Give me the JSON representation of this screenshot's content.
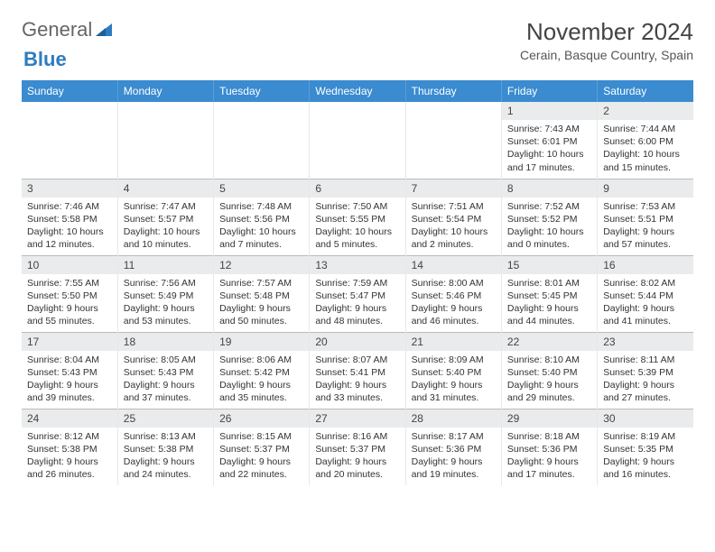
{
  "logo": {
    "general": "General",
    "blue": "Blue"
  },
  "title": "November 2024",
  "location": "Cerain, Basque Country, Spain",
  "colors": {
    "header_bg": "#3a8bd0",
    "header_text": "#ffffff",
    "daynum_bg": "#e9ebec",
    "text": "#333333",
    "logo_blue": "#2e7cc0",
    "border": "#bbbbbb"
  },
  "weekdays": [
    "Sunday",
    "Monday",
    "Tuesday",
    "Wednesday",
    "Thursday",
    "Friday",
    "Saturday"
  ],
  "weeks": [
    [
      null,
      null,
      null,
      null,
      null,
      {
        "n": "1",
        "sr": "Sunrise: 7:43 AM",
        "ss": "Sunset: 6:01 PM",
        "d1": "Daylight: 10 hours",
        "d2": "and 17 minutes."
      },
      {
        "n": "2",
        "sr": "Sunrise: 7:44 AM",
        "ss": "Sunset: 6:00 PM",
        "d1": "Daylight: 10 hours",
        "d2": "and 15 minutes."
      }
    ],
    [
      {
        "n": "3",
        "sr": "Sunrise: 7:46 AM",
        "ss": "Sunset: 5:58 PM",
        "d1": "Daylight: 10 hours",
        "d2": "and 12 minutes."
      },
      {
        "n": "4",
        "sr": "Sunrise: 7:47 AM",
        "ss": "Sunset: 5:57 PM",
        "d1": "Daylight: 10 hours",
        "d2": "and 10 minutes."
      },
      {
        "n": "5",
        "sr": "Sunrise: 7:48 AM",
        "ss": "Sunset: 5:56 PM",
        "d1": "Daylight: 10 hours",
        "d2": "and 7 minutes."
      },
      {
        "n": "6",
        "sr": "Sunrise: 7:50 AM",
        "ss": "Sunset: 5:55 PM",
        "d1": "Daylight: 10 hours",
        "d2": "and 5 minutes."
      },
      {
        "n": "7",
        "sr": "Sunrise: 7:51 AM",
        "ss": "Sunset: 5:54 PM",
        "d1": "Daylight: 10 hours",
        "d2": "and 2 minutes."
      },
      {
        "n": "8",
        "sr": "Sunrise: 7:52 AM",
        "ss": "Sunset: 5:52 PM",
        "d1": "Daylight: 10 hours",
        "d2": "and 0 minutes."
      },
      {
        "n": "9",
        "sr": "Sunrise: 7:53 AM",
        "ss": "Sunset: 5:51 PM",
        "d1": "Daylight: 9 hours",
        "d2": "and 57 minutes."
      }
    ],
    [
      {
        "n": "10",
        "sr": "Sunrise: 7:55 AM",
        "ss": "Sunset: 5:50 PM",
        "d1": "Daylight: 9 hours",
        "d2": "and 55 minutes."
      },
      {
        "n": "11",
        "sr": "Sunrise: 7:56 AM",
        "ss": "Sunset: 5:49 PM",
        "d1": "Daylight: 9 hours",
        "d2": "and 53 minutes."
      },
      {
        "n": "12",
        "sr": "Sunrise: 7:57 AM",
        "ss": "Sunset: 5:48 PM",
        "d1": "Daylight: 9 hours",
        "d2": "and 50 minutes."
      },
      {
        "n": "13",
        "sr": "Sunrise: 7:59 AM",
        "ss": "Sunset: 5:47 PM",
        "d1": "Daylight: 9 hours",
        "d2": "and 48 minutes."
      },
      {
        "n": "14",
        "sr": "Sunrise: 8:00 AM",
        "ss": "Sunset: 5:46 PM",
        "d1": "Daylight: 9 hours",
        "d2": "and 46 minutes."
      },
      {
        "n": "15",
        "sr": "Sunrise: 8:01 AM",
        "ss": "Sunset: 5:45 PM",
        "d1": "Daylight: 9 hours",
        "d2": "and 44 minutes."
      },
      {
        "n": "16",
        "sr": "Sunrise: 8:02 AM",
        "ss": "Sunset: 5:44 PM",
        "d1": "Daylight: 9 hours",
        "d2": "and 41 minutes."
      }
    ],
    [
      {
        "n": "17",
        "sr": "Sunrise: 8:04 AM",
        "ss": "Sunset: 5:43 PM",
        "d1": "Daylight: 9 hours",
        "d2": "and 39 minutes."
      },
      {
        "n": "18",
        "sr": "Sunrise: 8:05 AM",
        "ss": "Sunset: 5:43 PM",
        "d1": "Daylight: 9 hours",
        "d2": "and 37 minutes."
      },
      {
        "n": "19",
        "sr": "Sunrise: 8:06 AM",
        "ss": "Sunset: 5:42 PM",
        "d1": "Daylight: 9 hours",
        "d2": "and 35 minutes."
      },
      {
        "n": "20",
        "sr": "Sunrise: 8:07 AM",
        "ss": "Sunset: 5:41 PM",
        "d1": "Daylight: 9 hours",
        "d2": "and 33 minutes."
      },
      {
        "n": "21",
        "sr": "Sunrise: 8:09 AM",
        "ss": "Sunset: 5:40 PM",
        "d1": "Daylight: 9 hours",
        "d2": "and 31 minutes."
      },
      {
        "n": "22",
        "sr": "Sunrise: 8:10 AM",
        "ss": "Sunset: 5:40 PM",
        "d1": "Daylight: 9 hours",
        "d2": "and 29 minutes."
      },
      {
        "n": "23",
        "sr": "Sunrise: 8:11 AM",
        "ss": "Sunset: 5:39 PM",
        "d1": "Daylight: 9 hours",
        "d2": "and 27 minutes."
      }
    ],
    [
      {
        "n": "24",
        "sr": "Sunrise: 8:12 AM",
        "ss": "Sunset: 5:38 PM",
        "d1": "Daylight: 9 hours",
        "d2": "and 26 minutes."
      },
      {
        "n": "25",
        "sr": "Sunrise: 8:13 AM",
        "ss": "Sunset: 5:38 PM",
        "d1": "Daylight: 9 hours",
        "d2": "and 24 minutes."
      },
      {
        "n": "26",
        "sr": "Sunrise: 8:15 AM",
        "ss": "Sunset: 5:37 PM",
        "d1": "Daylight: 9 hours",
        "d2": "and 22 minutes."
      },
      {
        "n": "27",
        "sr": "Sunrise: 8:16 AM",
        "ss": "Sunset: 5:37 PM",
        "d1": "Daylight: 9 hours",
        "d2": "and 20 minutes."
      },
      {
        "n": "28",
        "sr": "Sunrise: 8:17 AM",
        "ss": "Sunset: 5:36 PM",
        "d1": "Daylight: 9 hours",
        "d2": "and 19 minutes."
      },
      {
        "n": "29",
        "sr": "Sunrise: 8:18 AM",
        "ss": "Sunset: 5:36 PM",
        "d1": "Daylight: 9 hours",
        "d2": "and 17 minutes."
      },
      {
        "n": "30",
        "sr": "Sunrise: 8:19 AM",
        "ss": "Sunset: 5:35 PM",
        "d1": "Daylight: 9 hours",
        "d2": "and 16 minutes."
      }
    ]
  ]
}
